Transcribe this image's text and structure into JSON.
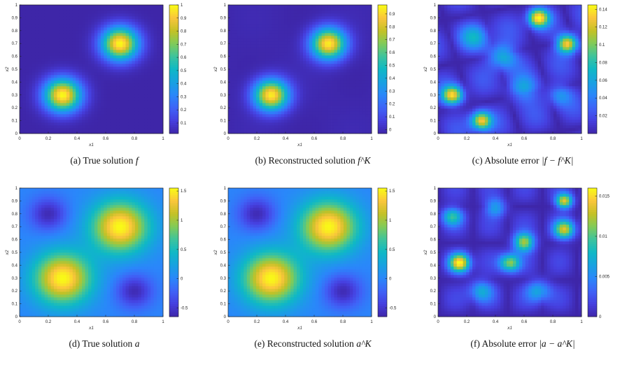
{
  "chart_data": [
    {
      "type": "heatmap",
      "label": "(a)",
      "caption_text": "True solution",
      "caption_math": "f",
      "field": "f_true",
      "xlabel": "x1",
      "ylabel": "x2",
      "xlim": [
        0,
        1
      ],
      "ylim": [
        0,
        1
      ],
      "x_ticks": [
        "0",
        "0.2",
        "0.4",
        "0.6",
        "0.8",
        "1"
      ],
      "y_ticks": [
        "0",
        "0.1",
        "0.2",
        "0.3",
        "0.4",
        "0.5",
        "0.6",
        "0.7",
        "0.8",
        "0.9",
        "1"
      ],
      "clim": [
        0.02,
        1
      ],
      "colorbar_ticks": [
        "0.1",
        "0.2",
        "0.3",
        "0.4",
        "0.5",
        "0.6",
        "0.7",
        "0.8",
        "0.9",
        "1"
      ],
      "peaks": [
        {
          "x": 0.3,
          "y": 0.3,
          "value": 1
        },
        {
          "x": 0.7,
          "y": 0.7,
          "value": 1
        }
      ]
    },
    {
      "type": "heatmap",
      "label": "(b)",
      "caption_text": "Reconstructed solution",
      "caption_math": "f^K",
      "field": "f_rec",
      "xlabel": "x1",
      "ylabel": "x2",
      "xlim": [
        0,
        1
      ],
      "ylim": [
        0,
        1
      ],
      "x_ticks": [
        "0",
        "0.2",
        "0.4",
        "0.6",
        "0.8",
        "1"
      ],
      "y_ticks": [
        "0",
        "0.1",
        "0.2",
        "0.3",
        "0.4",
        "0.5",
        "0.6",
        "0.7",
        "0.8",
        "0.9",
        "1"
      ],
      "clim": [
        -0.03,
        0.97
      ],
      "colorbar_ticks": [
        "0",
        "0.1",
        "0.2",
        "0.3",
        "0.4",
        "0.5",
        "0.6",
        "0.7",
        "0.8",
        "0.9"
      ],
      "peaks": [
        {
          "x": 0.3,
          "y": 0.3,
          "value": 0.97
        },
        {
          "x": 0.7,
          "y": 0.7,
          "value": 0.97
        }
      ]
    },
    {
      "type": "heatmap",
      "label": "(c)",
      "caption_text": "Absolute error",
      "caption_math": "|f − f^K|",
      "field": "f_err",
      "xlabel": "x1",
      "ylabel": "x2",
      "xlim": [
        0,
        1
      ],
      "ylim": [
        0,
        1
      ],
      "x_ticks": [
        "0",
        "0.2",
        "0.4",
        "0.6",
        "0.8",
        "1"
      ],
      "y_ticks": [
        "0",
        "0.1",
        "0.2",
        "0.3",
        "0.4",
        "0.5",
        "0.6",
        "0.7",
        "0.8",
        "0.9",
        "1"
      ],
      "clim": [
        0,
        0.145
      ],
      "colorbar_ticks": [
        "0.02",
        "0.04",
        "0.06",
        "0.08",
        "0.1",
        "0.12",
        "0.14"
      ],
      "peaks": [
        {
          "x": 0.1,
          "y": 0.3,
          "value": 0.12
        },
        {
          "x": 0.3,
          "y": 0.1,
          "value": 0.12
        },
        {
          "x": 0.7,
          "y": 0.9,
          "value": 0.13
        },
        {
          "x": 0.9,
          "y": 0.7,
          "value": 0.13
        }
      ]
    },
    {
      "type": "heatmap",
      "label": "(d)",
      "caption_text": "True solution",
      "caption_math": "a",
      "field": "a_true",
      "xlabel": "x1",
      "ylabel": "x2",
      "xlim": [
        0,
        1
      ],
      "ylim": [
        0,
        1
      ],
      "x_ticks": [
        "0",
        "0.2",
        "0.4",
        "0.6",
        "0.8",
        "1"
      ],
      "y_ticks": [
        "0",
        "0.1",
        "0.2",
        "0.3",
        "0.4",
        "0.5",
        "0.6",
        "0.7",
        "0.8",
        "0.9",
        "1"
      ],
      "clim": [
        -0.65,
        1.55
      ],
      "colorbar_ticks": [
        "-0.5",
        "0",
        "0.5",
        "1",
        "1.5"
      ],
      "peaks": [
        {
          "x": 0.3,
          "y": 0.3,
          "value": 1.55
        },
        {
          "x": 0.7,
          "y": 0.7,
          "value": 1.55
        },
        {
          "x": 0.2,
          "y": 0.8,
          "value": -0.6
        },
        {
          "x": 0.8,
          "y": 0.2,
          "value": -0.6
        }
      ]
    },
    {
      "type": "heatmap",
      "label": "(e)",
      "caption_text": "Reconstructed solution",
      "caption_math": "a^K",
      "field": "a_rec",
      "xlabel": "x1",
      "ylabel": "x2",
      "xlim": [
        0,
        1
      ],
      "ylim": [
        0,
        1
      ],
      "x_ticks": [
        "0",
        "0.2",
        "0.4",
        "0.6",
        "0.8",
        "1"
      ],
      "y_ticks": [
        "0",
        "0.1",
        "0.2",
        "0.3",
        "0.4",
        "0.5",
        "0.6",
        "0.7",
        "0.8",
        "0.9",
        "1"
      ],
      "clim": [
        -0.65,
        1.55
      ],
      "colorbar_ticks": [
        "-0.5",
        "0",
        "0.5",
        "1",
        "1.5"
      ],
      "peaks": [
        {
          "x": 0.3,
          "y": 0.3,
          "value": 1.54
        },
        {
          "x": 0.7,
          "y": 0.7,
          "value": 1.54
        },
        {
          "x": 0.2,
          "y": 0.8,
          "value": -0.6
        },
        {
          "x": 0.8,
          "y": 0.2,
          "value": -0.6
        }
      ]
    },
    {
      "type": "heatmap",
      "label": "(f)",
      "caption_text": "Absolute error",
      "caption_math": "|a − a^K|",
      "field": "a_err",
      "xlabel": "x1",
      "ylabel": "x2",
      "xlim": [
        0,
        1
      ],
      "ylim": [
        0,
        1
      ],
      "x_ticks": [
        "0",
        "0.2",
        "0.4",
        "0.6",
        "0.8",
        "1"
      ],
      "y_ticks": [
        "0",
        "0.1",
        "0.2",
        "0.3",
        "0.4",
        "0.5",
        "0.6",
        "0.7",
        "0.8",
        "0.9",
        "1"
      ],
      "clim": [
        0,
        0.016
      ],
      "colorbar_ticks": [
        "0",
        "0.005",
        "0.01",
        "0.015"
      ],
      "peaks": [
        {
          "x": 0.15,
          "y": 0.42,
          "value": 0.0145
        },
        {
          "x": 0.88,
          "y": 0.9,
          "value": 0.013
        },
        {
          "x": 0.6,
          "y": 0.58,
          "value": 0.012
        },
        {
          "x": 0.88,
          "y": 0.68,
          "value": 0.012
        },
        {
          "x": 0.5,
          "y": 0.42,
          "value": 0.011
        }
      ]
    }
  ],
  "colormap": "parula",
  "colors": {
    "low": "#3e26a8",
    "mid": "#2eb7a2",
    "high": "#f9fb15"
  }
}
